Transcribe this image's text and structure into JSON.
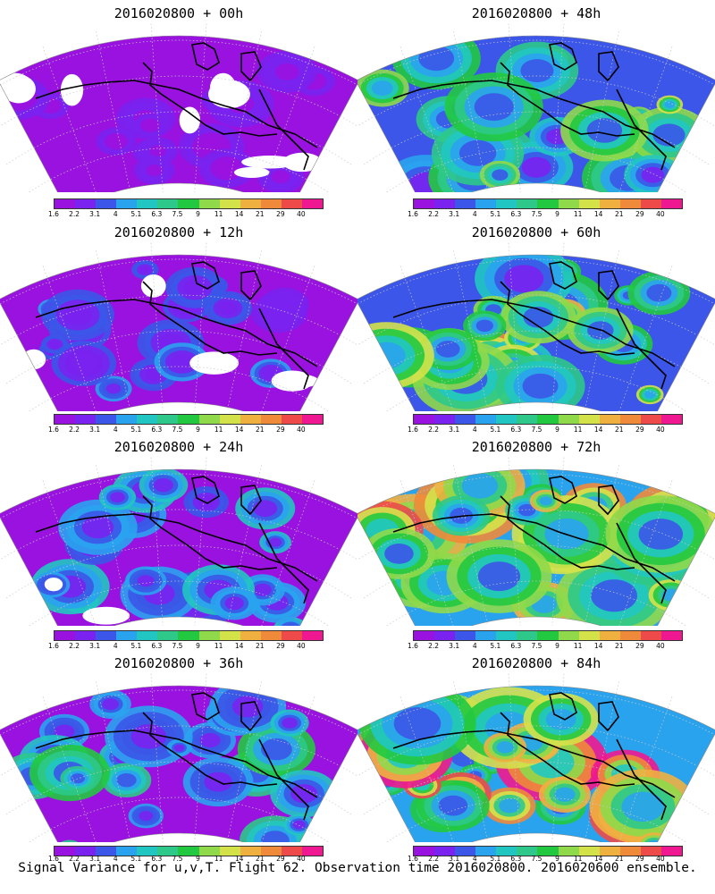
{
  "colorbar": {
    "labels": [
      "1.6",
      "2.2",
      "3.1",
      "4",
      "5.1",
      "6.3",
      "7.5",
      "9",
      "11",
      "14",
      "21",
      "29",
      "40"
    ],
    "colors": [
      "#9a12e0",
      "#7a22f0",
      "#3b56e8",
      "#2aa3ee",
      "#21c6c2",
      "#2ec98a",
      "#22c940",
      "#8fd94a",
      "#d4e24a",
      "#f0b040",
      "#ef8a3a",
      "#ee4a4a",
      "#f01890"
    ]
  },
  "panels": [
    {
      "id": "p00",
      "title": "2016020800 + 00h",
      "level": 0.1
    },
    {
      "id": "p12",
      "title": "2016020800 + 12h",
      "level": 0.22
    },
    {
      "id": "p24",
      "title": "2016020800 + 24h",
      "level": 0.33
    },
    {
      "id": "p36",
      "title": "2016020800 + 36h",
      "level": 0.45
    },
    {
      "id": "p48",
      "title": "2016020800 + 48h",
      "level": 0.55
    },
    {
      "id": "p60",
      "title": "2016020800 + 60h",
      "level": 0.68
    },
    {
      "id": "p72",
      "title": "2016020800 + 72h",
      "level": 0.8
    },
    {
      "id": "p84",
      "title": "2016020800 + 84h",
      "level": 0.9
    }
  ],
  "footer": {
    "caption": "Signal Variance for u,v,T. Flight 62. Observation time 2016020800. 2016020600 ensemble."
  }
}
